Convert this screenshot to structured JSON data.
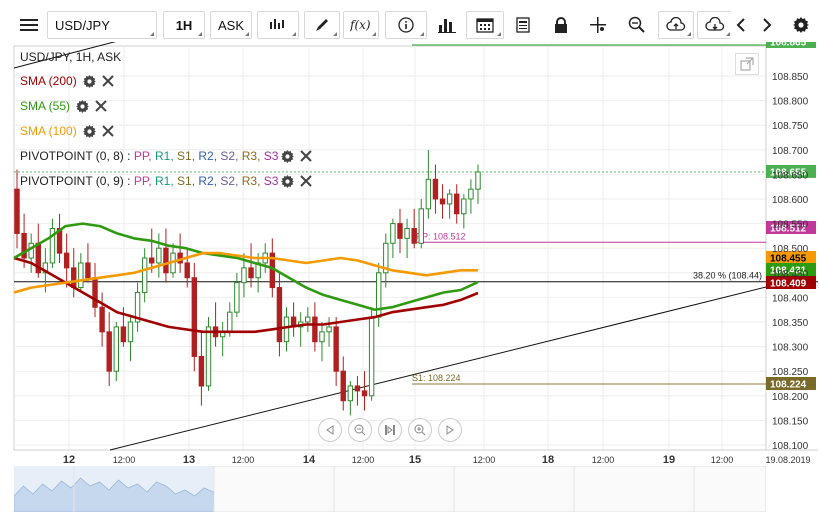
{
  "toolbar": {
    "symbol": "USD/JPY",
    "timeframe": "1H",
    "price_type": "ASK"
  },
  "legend": {
    "title": "USD/JPY, 1H, ASK",
    "sma200": "SMA (200)",
    "sma55": "SMA (55)",
    "sma100": "SMA (100)",
    "pivot1_name": "PIVOTPOINT (0, 8)",
    "pivot2_name": "PIVOTPOINT (0, 9)",
    "pivot_sep": ":",
    "pivot_levels": [
      "PP,",
      "R1,",
      "S1,",
      "R2,",
      "S2,",
      "R3,",
      "S3"
    ]
  },
  "colors": {
    "sma200": "#a00000",
    "sma55": "#2e9a10",
    "sma100": "#f59a00",
    "pp": "#c0399a",
    "r1": "#1a9a7a",
    "s1": "#7a6a2a",
    "r2": "#2f5fb0",
    "s2": "#6a5a9a",
    "r3": "#8a6a1a",
    "s3": "#a030a0",
    "candle_up": "#2e8a2e",
    "candle_down": "#b02020",
    "price_green": "#4caf50"
  },
  "price_axis": {
    "ticks": [
      "108.850",
      "108.800",
      "108.750",
      "108.700",
      "108.650",
      "108.600",
      "108.550",
      "108.500",
      "108.450",
      "108.400",
      "108.350",
      "108.300",
      "108.250",
      "108.200",
      "108.150",
      "108.100"
    ],
    "current_price": "108.655",
    "top_partial": "108.865",
    "pp_label": "108.512",
    "sma100_label": "108.455",
    "sma55_label": "108.431",
    "sma200_label": "108.409",
    "s1_label": "108.224"
  },
  "time_axis": {
    "labels": [
      "12",
      "12:00",
      "13",
      "12:00",
      "14",
      "12:00",
      "15",
      "12:00",
      "18",
      "12:00",
      "19",
      "12:00",
      "19.08.2019"
    ]
  },
  "annotations": {
    "fib": "38.20 % (108.44)",
    "pp": "PP: 108.512",
    "s1": "S1: 108.224"
  },
  "chart_data": {
    "type": "candlestick",
    "symbol": "USD/JPY",
    "interval": "1H",
    "ylim": [
      108.08,
      108.87
    ],
    "ohlc_note": "approximate hourly candles read from the chart",
    "candles": [
      [
        108.62,
        108.66,
        108.5,
        108.53
      ],
      [
        108.53,
        108.57,
        108.46,
        108.48
      ],
      [
        108.48,
        108.53,
        108.45,
        108.51
      ],
      [
        108.51,
        108.55,
        108.44,
        108.45
      ],
      [
        108.45,
        108.5,
        108.41,
        108.47
      ],
      [
        108.47,
        108.56,
        108.46,
        108.54
      ],
      [
        108.54,
        108.57,
        108.47,
        108.49
      ],
      [
        108.49,
        108.53,
        108.42,
        108.46
      ],
      [
        108.46,
        108.5,
        108.4,
        108.42
      ],
      [
        108.42,
        108.49,
        108.41,
        108.47
      ],
      [
        108.47,
        108.51,
        108.43,
        108.44
      ],
      [
        108.44,
        108.47,
        108.36,
        108.38
      ],
      [
        108.38,
        108.41,
        108.3,
        108.33
      ],
      [
        108.33,
        108.37,
        108.22,
        108.25
      ],
      [
        108.25,
        108.35,
        108.23,
        108.34
      ],
      [
        108.34,
        108.38,
        108.3,
        108.31
      ],
      [
        108.31,
        108.36,
        108.27,
        108.35
      ],
      [
        108.35,
        108.43,
        108.33,
        108.41
      ],
      [
        108.41,
        108.5,
        108.39,
        108.48
      ],
      [
        108.48,
        108.54,
        108.45,
        108.47
      ],
      [
        108.47,
        108.53,
        108.44,
        108.5
      ],
      [
        108.5,
        108.54,
        108.43,
        108.45
      ],
      [
        108.45,
        108.51,
        108.44,
        108.49
      ],
      [
        108.49,
        108.53,
        108.45,
        108.47
      ],
      [
        108.47,
        108.5,
        108.42,
        108.44
      ],
      [
        108.44,
        108.47,
        108.25,
        108.28
      ],
      [
        108.28,
        108.33,
        108.18,
        108.22
      ],
      [
        108.22,
        108.36,
        108.21,
        108.34
      ],
      [
        108.34,
        108.39,
        108.3,
        108.32
      ],
      [
        108.32,
        108.35,
        108.28,
        108.33
      ],
      [
        108.33,
        108.39,
        108.32,
        108.37
      ],
      [
        108.37,
        108.45,
        108.36,
        108.43
      ],
      [
        108.43,
        108.49,
        108.4,
        108.46
      ],
      [
        108.46,
        108.51,
        108.42,
        108.44
      ],
      [
        108.44,
        108.49,
        108.41,
        108.47
      ],
      [
        108.47,
        108.51,
        108.45,
        108.49
      ],
      [
        108.49,
        108.52,
        108.4,
        108.42
      ],
      [
        108.42,
        108.45,
        108.28,
        108.31
      ],
      [
        108.31,
        108.38,
        108.29,
        108.36
      ],
      [
        108.36,
        108.39,
        108.32,
        108.34
      ],
      [
        108.34,
        108.37,
        108.3,
        108.35
      ],
      [
        108.35,
        108.38,
        108.33,
        108.36
      ],
      [
        108.36,
        108.39,
        108.29,
        108.31
      ],
      [
        108.31,
        108.35,
        108.27,
        108.33
      ],
      [
        108.33,
        108.36,
        108.3,
        108.34
      ],
      [
        108.34,
        108.36,
        108.22,
        108.25
      ],
      [
        108.25,
        108.28,
        108.17,
        108.19
      ],
      [
        108.19,
        108.23,
        108.16,
        108.22
      ],
      [
        108.22,
        108.24,
        108.18,
        108.21
      ],
      [
        108.21,
        108.25,
        108.17,
        108.2
      ],
      [
        108.2,
        108.38,
        108.19,
        108.36
      ],
      [
        108.36,
        108.47,
        108.34,
        108.45
      ],
      [
        108.45,
        108.53,
        108.42,
        108.51
      ],
      [
        108.51,
        108.56,
        108.48,
        108.55
      ],
      [
        108.55,
        108.58,
        108.49,
        108.52
      ],
      [
        108.52,
        108.56,
        108.48,
        108.54
      ],
      [
        108.54,
        108.58,
        108.5,
        108.51
      ],
      [
        108.51,
        108.6,
        108.5,
        108.58
      ],
      [
        108.58,
        108.7,
        108.56,
        108.64
      ],
      [
        108.64,
        108.67,
        108.57,
        108.6
      ],
      [
        108.6,
        108.63,
        108.56,
        108.59
      ],
      [
        108.59,
        108.62,
        108.56,
        108.61
      ],
      [
        108.61,
        108.63,
        108.55,
        108.57
      ],
      [
        108.57,
        108.61,
        108.54,
        108.6
      ],
      [
        108.6,
        108.64,
        108.57,
        108.62
      ],
      [
        108.62,
        108.67,
        108.59,
        108.655
      ]
    ],
    "series": [
      {
        "name": "SMA (200)",
        "values": [
          108.48,
          108.47,
          108.45,
          108.43,
          108.41,
          108.39,
          108.37,
          108.36,
          108.35,
          108.34,
          108.335,
          108.33,
          108.33,
          108.33,
          108.33,
          108.335,
          108.34,
          108.345,
          108.345,
          108.35,
          108.355,
          108.36,
          108.37,
          108.375,
          108.38,
          108.385,
          108.395,
          108.409
        ]
      },
      {
        "name": "SMA (55)",
        "values": [
          108.48,
          108.5,
          108.52,
          108.545,
          108.55,
          108.545,
          108.53,
          108.52,
          108.515,
          108.505,
          108.5,
          108.49,
          108.485,
          108.48,
          108.47,
          108.46,
          108.44,
          108.42,
          108.405,
          108.395,
          108.385,
          108.375,
          108.38,
          108.39,
          108.4,
          108.41,
          108.415,
          108.431
        ]
      },
      {
        "name": "SMA (100)",
        "values": [
          108.41,
          108.42,
          108.425,
          108.43,
          108.435,
          108.44,
          108.445,
          108.45,
          108.46,
          108.47,
          108.48,
          108.49,
          108.49,
          108.485,
          108.48,
          108.48,
          108.475,
          108.47,
          108.475,
          108.48,
          108.475,
          108.465,
          108.455,
          108.45,
          108.445,
          108.45,
          108.455,
          108.455
        ]
      }
    ],
    "levels": [
      {
        "name": "PP",
        "value": 108.512
      },
      {
        "name": "S1",
        "value": 108.224
      },
      {
        "name": "38.20 %",
        "value": 108.44
      },
      {
        "name": "current",
        "value": 108.655
      }
    ],
    "xlabel": "",
    "ylabel": ""
  }
}
